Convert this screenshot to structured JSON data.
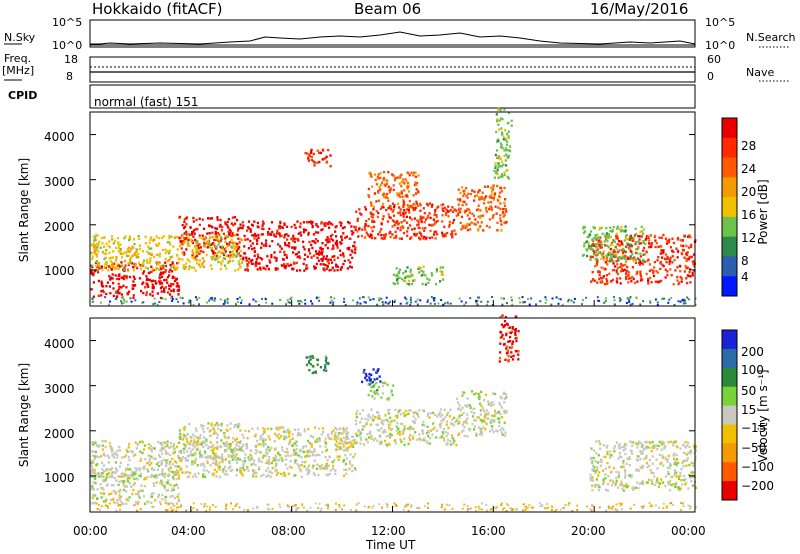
{
  "header": {
    "radar": "Hokkaido (fitACF)",
    "beam": "Beam 06",
    "date": "16/May/2016"
  },
  "nsky_panel": {
    "left_label": "N.Sky",
    "right_label": "N.Search",
    "left_ticks": [
      "10^5",
      "10^0"
    ],
    "right_ticks": [
      "10^5",
      "10^0"
    ]
  },
  "freq_panel": {
    "left_label_top": "Freq.",
    "left_label_unit": "[MHz]",
    "left_ticks": [
      "18",
      "8"
    ],
    "right_label": "Nave",
    "right_ticks": [
      "60",
      "0"
    ]
  },
  "cpid_panel": {
    "label": "CPID",
    "value": "normal (fast) 151"
  },
  "x_axis": {
    "label": "Time UT",
    "ticks": [
      "00:00",
      "04:00",
      "08:00",
      "12:00",
      "16:00",
      "20:00",
      "00:00"
    ]
  },
  "colors": {
    "power_scale": [
      "#0018ff",
      "#2a5fb0",
      "#2e8a4a",
      "#6cc24a",
      "#f0c000",
      "#f59a00",
      "#ff5a00",
      "#ff2a00",
      "#e80000"
    ],
    "velocity_scale": [
      "#1a22d8",
      "#2c6aa8",
      "#2a8a3a",
      "#7ad23a",
      "#c8c8c0",
      "#f0c000",
      "#f59a00",
      "#ff5a00",
      "#e80000"
    ]
  },
  "chart_data": [
    {
      "type": "heatmap",
      "name_panel": "power",
      "ylabel": "Slant Range [km]",
      "yticks": [
        "1000",
        "2000",
        "3000",
        "4000"
      ],
      "ylim": [
        200,
        4500
      ],
      "xlim_hours": [
        0,
        24
      ],
      "colorbar_label": "Power [dB]",
      "colorbar_ticks": [
        "4",
        "8",
        "12",
        "16",
        "20",
        "24",
        "28"
      ],
      "regions": [
        {
          "t0": 0.0,
          "t1": 3.5,
          "r0": 400,
          "r1": 1200,
          "level": 8
        },
        {
          "t0": 3.5,
          "t1": 6.0,
          "r0": 1300,
          "r1": 2200,
          "level": 8
        },
        {
          "t0": 6.0,
          "t1": 10.5,
          "r0": 1000,
          "r1": 2100,
          "level": 8
        },
        {
          "t0": 10.5,
          "t1": 14.5,
          "r0": 1700,
          "r1": 2500,
          "level": 7
        },
        {
          "t0": 14.5,
          "t1": 16.5,
          "r0": 1900,
          "r1": 2900,
          "level": 6
        },
        {
          "t0": 11.0,
          "t1": 13.0,
          "r0": 2400,
          "r1": 3200,
          "level": 6
        },
        {
          "t0": 8.5,
          "t1": 9.5,
          "r0": 3300,
          "r1": 3700,
          "level": 7
        },
        {
          "t0": 0.0,
          "t1": 6.0,
          "r0": 1000,
          "r1": 1800,
          "level": 4
        },
        {
          "t0": 12.0,
          "t1": 14.0,
          "r0": 700,
          "r1": 1100,
          "level": 3
        },
        {
          "t0": 19.8,
          "t1": 24.0,
          "r0": 700,
          "r1": 1800,
          "level": 7
        },
        {
          "t0": 19.5,
          "t1": 22.0,
          "r0": 1200,
          "r1": 2000,
          "level": 3
        },
        {
          "t0": 16.0,
          "t1": 16.7,
          "r0": 3000,
          "r1": 4600,
          "level": 3
        }
      ]
    },
    {
      "type": "heatmap",
      "name_panel": "velocity",
      "ylabel": "Slant Range [km]",
      "yticks": [
        "1000",
        "2000",
        "3000",
        "4000"
      ],
      "ylim": [
        200,
        4500
      ],
      "xlim_hours": [
        0,
        24
      ],
      "colorbar_label": "Velocity [m s⁻¹]",
      "colorbar_ticks": [
        "200",
        "100",
        "50",
        "15",
        "−15",
        "−50",
        "−100",
        "−200"
      ],
      "regions": [
        {
          "t0": 0.0,
          "t1": 3.5,
          "r0": 400,
          "r1": 1200,
          "level": 4
        },
        {
          "t0": 3.5,
          "t1": 6.0,
          "r0": 1300,
          "r1": 2200,
          "level": 4
        },
        {
          "t0": 6.0,
          "t1": 10.5,
          "r0": 1000,
          "r1": 2100,
          "level": 4
        },
        {
          "t0": 10.5,
          "t1": 14.5,
          "r0": 1700,
          "r1": 2500,
          "level": 4
        },
        {
          "t0": 14.5,
          "t1": 16.5,
          "r0": 1900,
          "r1": 2900,
          "level": 4
        },
        {
          "t0": 0.0,
          "t1": 6.0,
          "r0": 1000,
          "r1": 1800,
          "level": 4
        },
        {
          "t0": 19.8,
          "t1": 24.0,
          "r0": 700,
          "r1": 1800,
          "level": 4
        },
        {
          "t0": 9.5,
          "t1": 10.5,
          "r0": 1600,
          "r1": 2000,
          "level": 5
        },
        {
          "t0": 11.0,
          "t1": 12.0,
          "r0": 2700,
          "r1": 3100,
          "level": 3
        },
        {
          "t0": 10.7,
          "t1": 11.5,
          "r0": 3000,
          "r1": 3400,
          "level": 0
        },
        {
          "t0": 8.5,
          "t1": 9.5,
          "r0": 3300,
          "r1": 3700,
          "level": 2
        },
        {
          "t0": 16.2,
          "t1": 17.0,
          "r0": 3500,
          "r1": 4600,
          "level": 8
        }
      ]
    }
  ]
}
